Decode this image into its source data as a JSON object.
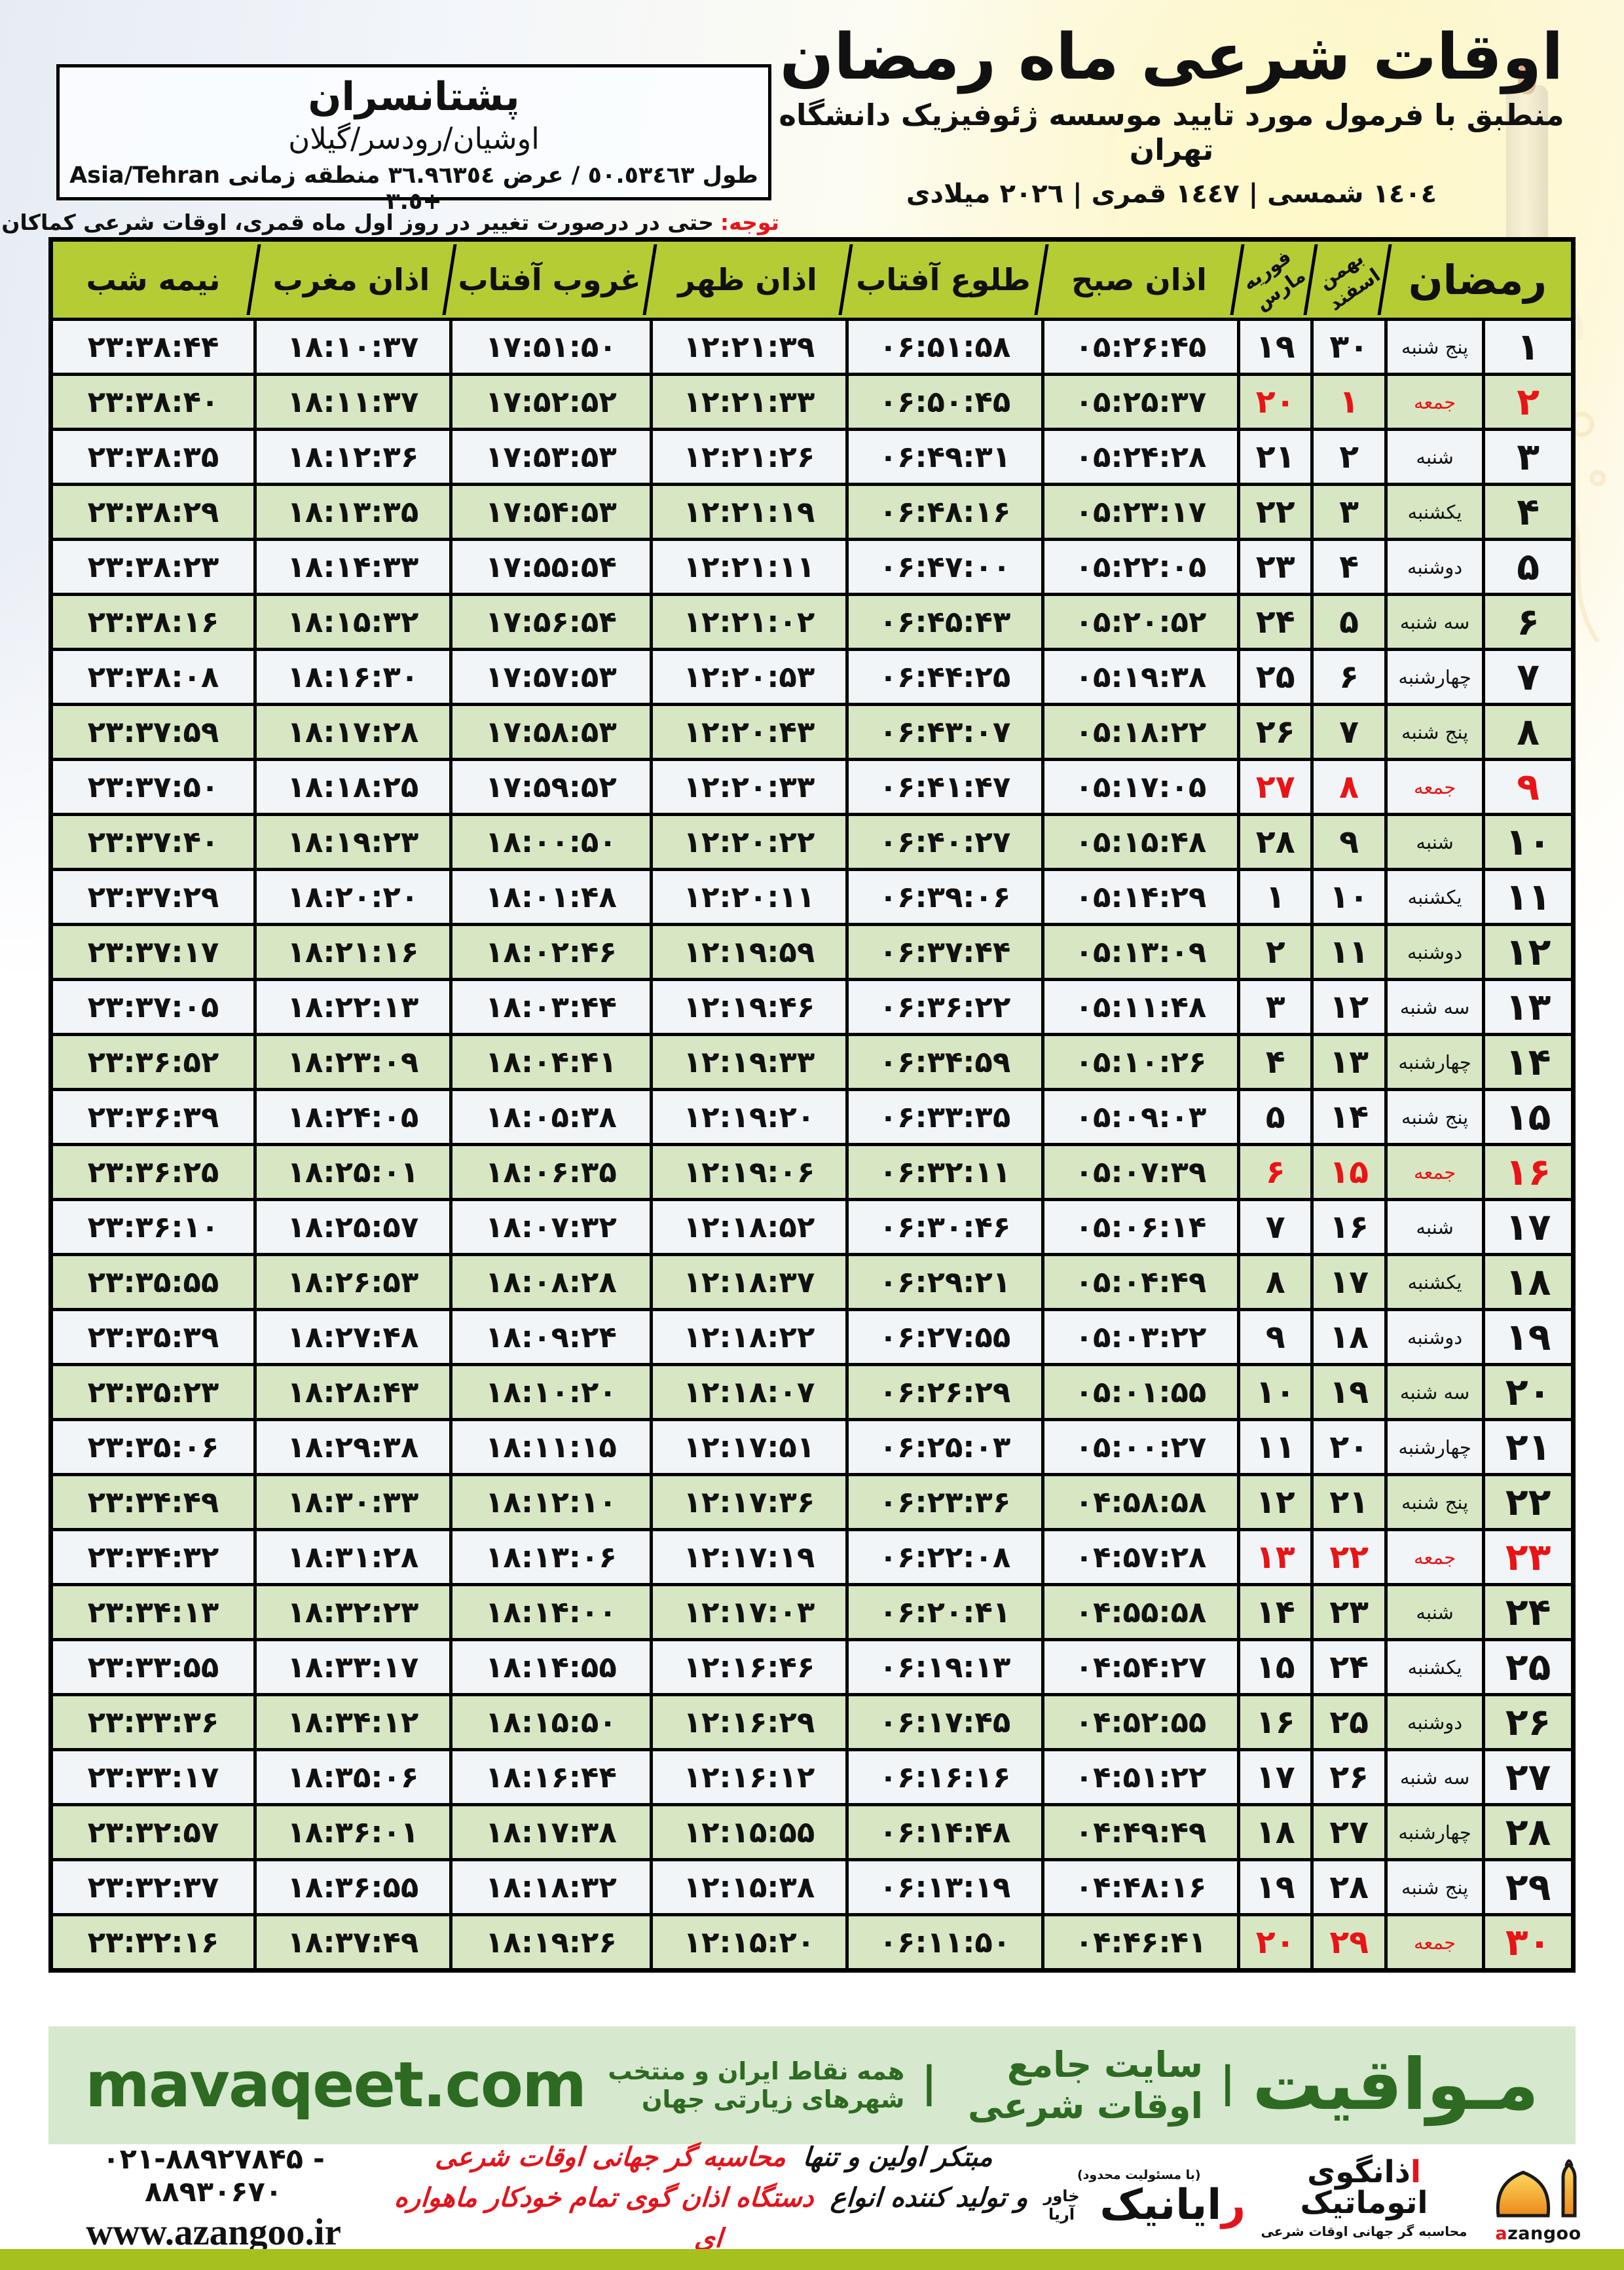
{
  "header": {
    "title": "اوقات شرعی ماه رمضان",
    "subtitle": "منطبق با فرمول مورد تایید موسسه ژئوفیزیک دانشگاه تهران",
    "years": "١٤٠٤ شمسی | ١٤٤٧ قمری | ٢٠٢٦ میلادی"
  },
  "location": {
    "name": "پشتانسران",
    "region": "اوشیان/رودسر/گیلان",
    "coordinates": "طول ٥٠.٥٣٤٦٣ / عرض ٣٦.٩٦٣٥٤ منطقه زمانی Asia/Tehran +٣.٥"
  },
  "notice": {
    "label": "توجه:",
    "text": "حتی در درصورت تغییر در روز اول ماه قمری، اوقات شرعی کماکان برای روزهای شمسی و میلادی معتبر است."
  },
  "table": {
    "columns": [
      {
        "key": "midnight",
        "label": "نیمه شب"
      },
      {
        "key": "maghrib",
        "label": "اذان مغرب"
      },
      {
        "key": "sunset",
        "label": "غروب آفتاب"
      },
      {
        "key": "dhuhr",
        "label": "اذان ظهر"
      },
      {
        "key": "sunrise",
        "label": "طلوع آفتاب"
      },
      {
        "key": "fajr",
        "label": "اذان صبح"
      },
      {
        "key": "greg",
        "top": "فوریه",
        "bottom": "مارس"
      },
      {
        "key": "pers",
        "top": "بهمن",
        "bottom": "اسفند"
      },
      {
        "key": "ramadan",
        "label": "رمضان",
        "span": 2
      }
    ],
    "rows": [
      {
        "day": "۱",
        "weekday": "پنج شنبه",
        "pers": "۳۰",
        "greg": "۱۹",
        "fajr": "۰۵:۲۶:۴۵",
        "sunrise": "۰۶:۵۱:۵۸",
        "dhuhr": "۱۲:۲۱:۳۹",
        "sunset": "۱۷:۵۱:۵۰",
        "maghrib": "۱۸:۱۰:۳۷",
        "midnight": "۲۳:۳۸:۴۴",
        "friday": false
      },
      {
        "day": "۲",
        "weekday": "جمعه",
        "pers": "۱",
        "greg": "۲۰",
        "fajr": "۰۵:۲۵:۳۷",
        "sunrise": "۰۶:۵۰:۴۵",
        "dhuhr": "۱۲:۲۱:۳۳",
        "sunset": "۱۷:۵۲:۵۲",
        "maghrib": "۱۸:۱۱:۳۷",
        "midnight": "۲۳:۳۸:۴۰",
        "friday": true
      },
      {
        "day": "۳",
        "weekday": "شنبه",
        "pers": "۲",
        "greg": "۲۱",
        "fajr": "۰۵:۲۴:۲۸",
        "sunrise": "۰۶:۴۹:۳۱",
        "dhuhr": "۱۲:۲۱:۲۶",
        "sunset": "۱۷:۵۳:۵۳",
        "maghrib": "۱۸:۱۲:۳۶",
        "midnight": "۲۳:۳۸:۳۵",
        "friday": false
      },
      {
        "day": "۴",
        "weekday": "یکشنبه",
        "pers": "۳",
        "greg": "۲۲",
        "fajr": "۰۵:۲۳:۱۷",
        "sunrise": "۰۶:۴۸:۱۶",
        "dhuhr": "۱۲:۲۱:۱۹",
        "sunset": "۱۷:۵۴:۵۳",
        "maghrib": "۱۸:۱۳:۳۵",
        "midnight": "۲۳:۳۸:۲۹",
        "friday": false
      },
      {
        "day": "۵",
        "weekday": "دوشنبه",
        "pers": "۴",
        "greg": "۲۳",
        "fajr": "۰۵:۲۲:۰۵",
        "sunrise": "۰۶:۴۷:۰۰",
        "dhuhr": "۱۲:۲۱:۱۱",
        "sunset": "۱۷:۵۵:۵۴",
        "maghrib": "۱۸:۱۴:۳۳",
        "midnight": "۲۳:۳۸:۲۳",
        "friday": false
      },
      {
        "day": "۶",
        "weekday": "سه شنبه",
        "pers": "۵",
        "greg": "۲۴",
        "fajr": "۰۵:۲۰:۵۲",
        "sunrise": "۰۶:۴۵:۴۳",
        "dhuhr": "۱۲:۲۱:۰۲",
        "sunset": "۱۷:۵۶:۵۴",
        "maghrib": "۱۸:۱۵:۳۲",
        "midnight": "۲۳:۳۸:۱۶",
        "friday": false
      },
      {
        "day": "۷",
        "weekday": "چهارشنبه",
        "pers": "۶",
        "greg": "۲۵",
        "fajr": "۰۵:۱۹:۳۸",
        "sunrise": "۰۶:۴۴:۲۵",
        "dhuhr": "۱۲:۲۰:۵۳",
        "sunset": "۱۷:۵۷:۵۳",
        "maghrib": "۱۸:۱۶:۳۰",
        "midnight": "۲۳:۳۸:۰۸",
        "friday": false
      },
      {
        "day": "۸",
        "weekday": "پنج شنبه",
        "pers": "۷",
        "greg": "۲۶",
        "fajr": "۰۵:۱۸:۲۲",
        "sunrise": "۰۶:۴۳:۰۷",
        "dhuhr": "۱۲:۲۰:۴۳",
        "sunset": "۱۷:۵۸:۵۳",
        "maghrib": "۱۸:۱۷:۲۸",
        "midnight": "۲۳:۳۷:۵۹",
        "friday": false
      },
      {
        "day": "۹",
        "weekday": "جمعه",
        "pers": "۸",
        "greg": "۲۷",
        "fajr": "۰۵:۱۷:۰۵",
        "sunrise": "۰۶:۴۱:۴۷",
        "dhuhr": "۱۲:۲۰:۳۳",
        "sunset": "۱۷:۵۹:۵۲",
        "maghrib": "۱۸:۱۸:۲۵",
        "midnight": "۲۳:۳۷:۵۰",
        "friday": true
      },
      {
        "day": "۱۰",
        "weekday": "شنبه",
        "pers": "۹",
        "greg": "۲۸",
        "fajr": "۰۵:۱۵:۴۸",
        "sunrise": "۰۶:۴۰:۲۷",
        "dhuhr": "۱۲:۲۰:۲۲",
        "sunset": "۱۸:۰۰:۵۰",
        "maghrib": "۱۸:۱۹:۲۳",
        "midnight": "۲۳:۳۷:۴۰",
        "friday": false
      },
      {
        "day": "۱۱",
        "weekday": "یکشنبه",
        "pers": "۱۰",
        "greg": "۱",
        "fajr": "۰۵:۱۴:۲۹",
        "sunrise": "۰۶:۳۹:۰۶",
        "dhuhr": "۱۲:۲۰:۱۱",
        "sunset": "۱۸:۰۱:۴۸",
        "maghrib": "۱۸:۲۰:۲۰",
        "midnight": "۲۳:۳۷:۲۹",
        "friday": false
      },
      {
        "day": "۱۲",
        "weekday": "دوشنبه",
        "pers": "۱۱",
        "greg": "۲",
        "fajr": "۰۵:۱۳:۰۹",
        "sunrise": "۰۶:۳۷:۴۴",
        "dhuhr": "۱۲:۱۹:۵۹",
        "sunset": "۱۸:۰۲:۴۶",
        "maghrib": "۱۸:۲۱:۱۶",
        "midnight": "۲۳:۳۷:۱۷",
        "friday": false
      },
      {
        "day": "۱۳",
        "weekday": "سه شنبه",
        "pers": "۱۲",
        "greg": "۳",
        "fajr": "۰۵:۱۱:۴۸",
        "sunrise": "۰۶:۳۶:۲۲",
        "dhuhr": "۱۲:۱۹:۴۶",
        "sunset": "۱۸:۰۳:۴۴",
        "maghrib": "۱۸:۲۲:۱۳",
        "midnight": "۲۳:۳۷:۰۵",
        "friday": false
      },
      {
        "day": "۱۴",
        "weekday": "چهارشنبه",
        "pers": "۱۳",
        "greg": "۴",
        "fajr": "۰۵:۱۰:۲۶",
        "sunrise": "۰۶:۳۴:۵۹",
        "dhuhr": "۱۲:۱۹:۳۳",
        "sunset": "۱۸:۰۴:۴۱",
        "maghrib": "۱۸:۲۳:۰۹",
        "midnight": "۲۳:۳۶:۵۲",
        "friday": false
      },
      {
        "day": "۱۵",
        "weekday": "پنج شنبه",
        "pers": "۱۴",
        "greg": "۵",
        "fajr": "۰۵:۰۹:۰۳",
        "sunrise": "۰۶:۳۳:۳۵",
        "dhuhr": "۱۲:۱۹:۲۰",
        "sunset": "۱۸:۰۵:۳۸",
        "maghrib": "۱۸:۲۴:۰۵",
        "midnight": "۲۳:۳۶:۳۹",
        "friday": false
      },
      {
        "day": "۱۶",
        "weekday": "جمعه",
        "pers": "۱۵",
        "greg": "۶",
        "fajr": "۰۵:۰۷:۳۹",
        "sunrise": "۰۶:۳۲:۱۱",
        "dhuhr": "۱۲:۱۹:۰۶",
        "sunset": "۱۸:۰۶:۳۵",
        "maghrib": "۱۸:۲۵:۰۱",
        "midnight": "۲۳:۳۶:۲۵",
        "friday": true
      },
      {
        "day": "۱۷",
        "weekday": "شنبه",
        "pers": "۱۶",
        "greg": "۷",
        "fajr": "۰۵:۰۶:۱۴",
        "sunrise": "۰۶:۳۰:۴۶",
        "dhuhr": "۱۲:۱۸:۵۲",
        "sunset": "۱۸:۰۷:۳۲",
        "maghrib": "۱۸:۲۵:۵۷",
        "midnight": "۲۳:۳۶:۱۰",
        "friday": false
      },
      {
        "day": "۱۸",
        "weekday": "یکشنبه",
        "pers": "۱۷",
        "greg": "۸",
        "fajr": "۰۵:۰۴:۴۹",
        "sunrise": "۰۶:۲۹:۲۱",
        "dhuhr": "۱۲:۱۸:۳۷",
        "sunset": "۱۸:۰۸:۲۸",
        "maghrib": "۱۸:۲۶:۵۳",
        "midnight": "۲۳:۳۵:۵۵",
        "friday": false
      },
      {
        "day": "۱۹",
        "weekday": "دوشنبه",
        "pers": "۱۸",
        "greg": "۹",
        "fajr": "۰۵:۰۳:۲۲",
        "sunrise": "۰۶:۲۷:۵۵",
        "dhuhr": "۱۲:۱۸:۲۲",
        "sunset": "۱۸:۰۹:۲۴",
        "maghrib": "۱۸:۲۷:۴۸",
        "midnight": "۲۳:۳۵:۳۹",
        "friday": false
      },
      {
        "day": "۲۰",
        "weekday": "سه شنبه",
        "pers": "۱۹",
        "greg": "۱۰",
        "fajr": "۰۵:۰۱:۵۵",
        "sunrise": "۰۶:۲۶:۲۹",
        "dhuhr": "۱۲:۱۸:۰۷",
        "sunset": "۱۸:۱۰:۲۰",
        "maghrib": "۱۸:۲۸:۴۳",
        "midnight": "۲۳:۳۵:۲۳",
        "friday": false
      },
      {
        "day": "۲۱",
        "weekday": "چهارشنبه",
        "pers": "۲۰",
        "greg": "۱۱",
        "fajr": "۰۵:۰۰:۲۷",
        "sunrise": "۰۶:۲۵:۰۳",
        "dhuhr": "۱۲:۱۷:۵۱",
        "sunset": "۱۸:۱۱:۱۵",
        "maghrib": "۱۸:۲۹:۳۸",
        "midnight": "۲۳:۳۵:۰۶",
        "friday": false
      },
      {
        "day": "۲۲",
        "weekday": "پنج شنبه",
        "pers": "۲۱",
        "greg": "۱۲",
        "fajr": "۰۴:۵۸:۵۸",
        "sunrise": "۰۶:۲۳:۳۶",
        "dhuhr": "۱۲:۱۷:۳۶",
        "sunset": "۱۸:۱۲:۱۰",
        "maghrib": "۱۸:۳۰:۳۳",
        "midnight": "۲۳:۳۴:۴۹",
        "friday": false
      },
      {
        "day": "۲۳",
        "weekday": "جمعه",
        "pers": "۲۲",
        "greg": "۱۳",
        "fajr": "۰۴:۵۷:۲۸",
        "sunrise": "۰۶:۲۲:۰۸",
        "dhuhr": "۱۲:۱۷:۱۹",
        "sunset": "۱۸:۱۳:۰۶",
        "maghrib": "۱۸:۳۱:۲۸",
        "midnight": "۲۳:۳۴:۳۲",
        "friday": true
      },
      {
        "day": "۲۴",
        "weekday": "شنبه",
        "pers": "۲۳",
        "greg": "۱۴",
        "fajr": "۰۴:۵۵:۵۸",
        "sunrise": "۰۶:۲۰:۴۱",
        "dhuhr": "۱۲:۱۷:۰۳",
        "sunset": "۱۸:۱۴:۰۰",
        "maghrib": "۱۸:۳۲:۲۳",
        "midnight": "۲۳:۳۴:۱۳",
        "friday": false
      },
      {
        "day": "۲۵",
        "weekday": "یکشنبه",
        "pers": "۲۴",
        "greg": "۱۵",
        "fajr": "۰۴:۵۴:۲۷",
        "sunrise": "۰۶:۱۹:۱۳",
        "dhuhr": "۱۲:۱۶:۴۶",
        "sunset": "۱۸:۱۴:۵۵",
        "maghrib": "۱۸:۳۳:۱۷",
        "midnight": "۲۳:۳۳:۵۵",
        "friday": false
      },
      {
        "day": "۲۶",
        "weekday": "دوشنبه",
        "pers": "۲۵",
        "greg": "۱۶",
        "fajr": "۰۴:۵۲:۵۵",
        "sunrise": "۰۶:۱۷:۴۵",
        "dhuhr": "۱۲:۱۶:۲۹",
        "sunset": "۱۸:۱۵:۵۰",
        "maghrib": "۱۸:۳۴:۱۲",
        "midnight": "۲۳:۳۳:۳۶",
        "friday": false
      },
      {
        "day": "۲۷",
        "weekday": "سه شنبه",
        "pers": "۲۶",
        "greg": "۱۷",
        "fajr": "۰۴:۵۱:۲۲",
        "sunrise": "۰۶:۱۶:۱۶",
        "dhuhr": "۱۲:۱۶:۱۲",
        "sunset": "۱۸:۱۶:۴۴",
        "maghrib": "۱۸:۳۵:۰۶",
        "midnight": "۲۳:۳۳:۱۷",
        "friday": false
      },
      {
        "day": "۲۸",
        "weekday": "چهارشنبه",
        "pers": "۲۷",
        "greg": "۱۸",
        "fajr": "۰۴:۴۹:۴۹",
        "sunrise": "۰۶:۱۴:۴۸",
        "dhuhr": "۱۲:۱۵:۵۵",
        "sunset": "۱۸:۱۷:۳۸",
        "maghrib": "۱۸:۳۶:۰۱",
        "midnight": "۲۳:۳۲:۵۷",
        "friday": false
      },
      {
        "day": "۲۹",
        "weekday": "پنج شنبه",
        "pers": "۲۸",
        "greg": "۱۹",
        "fajr": "۰۴:۴۸:۱۶",
        "sunrise": "۰۶:۱۳:۱۹",
        "dhuhr": "۱۲:۱۵:۳۸",
        "sunset": "۱۸:۱۸:۳۲",
        "maghrib": "۱۸:۳۶:۵۵",
        "midnight": "۲۳:۳۲:۳۷",
        "friday": false
      },
      {
        "day": "۳۰",
        "weekday": "جمعه",
        "pers": "۲۹",
        "greg": "۲۰",
        "fajr": "۰۴:۴۶:۴۱",
        "sunrise": "۰۶:۱۱:۵۰",
        "dhuhr": "۱۲:۱۵:۲۰",
        "sunset": "۱۸:۱۹:۲۶",
        "maghrib": "۱۸:۳۷:۴۹",
        "midnight": "۲۳:۳۲:۱۶",
        "friday": true
      }
    ]
  },
  "footer_bar": {
    "site_en": "mavaqeet.com",
    "brand": "مـواقیت",
    "sep": "|",
    "tagline1": "سایت جامع اوقات شرعی",
    "tagline2": "همه نقاط ایران و منتخب شهرهای زیارتی جهان"
  },
  "bottom_info": {
    "phones": "۰۲۱-۸۸۹۲۷۸۴۵ - ۸۸۹۳۰۶۷۰",
    "website": "www.azangoo.ir",
    "line1_black": "مبتکر اولین و تنها",
    "line1_red": "محاسبه گر جهانی اوقات شرعی",
    "line2_black": "و تولید کننده انواع",
    "line2_red": "دستگاه اذان گوی تمام خودکار ماهواره ای",
    "rayanik": {
      "note": "(با مسئولیت محدود)",
      "name_first": "ر",
      "name_rest": "ایانیک",
      "sub": "خاور آریا"
    },
    "azangoo": {
      "fa_first": "ا",
      "fa_rest": "ذانگوی اتوماتیک",
      "sub": "محاسبه گر جهانی اوقات شرعی",
      "en_first": "a",
      "en_rest": "zangoo"
    }
  },
  "colors": {
    "accent_red": "#e81416",
    "header_green": "#b5cc34",
    "row_green": "#d8e7c3",
    "bar_green": "#d6e8cd",
    "dark_green": "#2d6a22",
    "bottom_bar": "#a6c11d"
  }
}
